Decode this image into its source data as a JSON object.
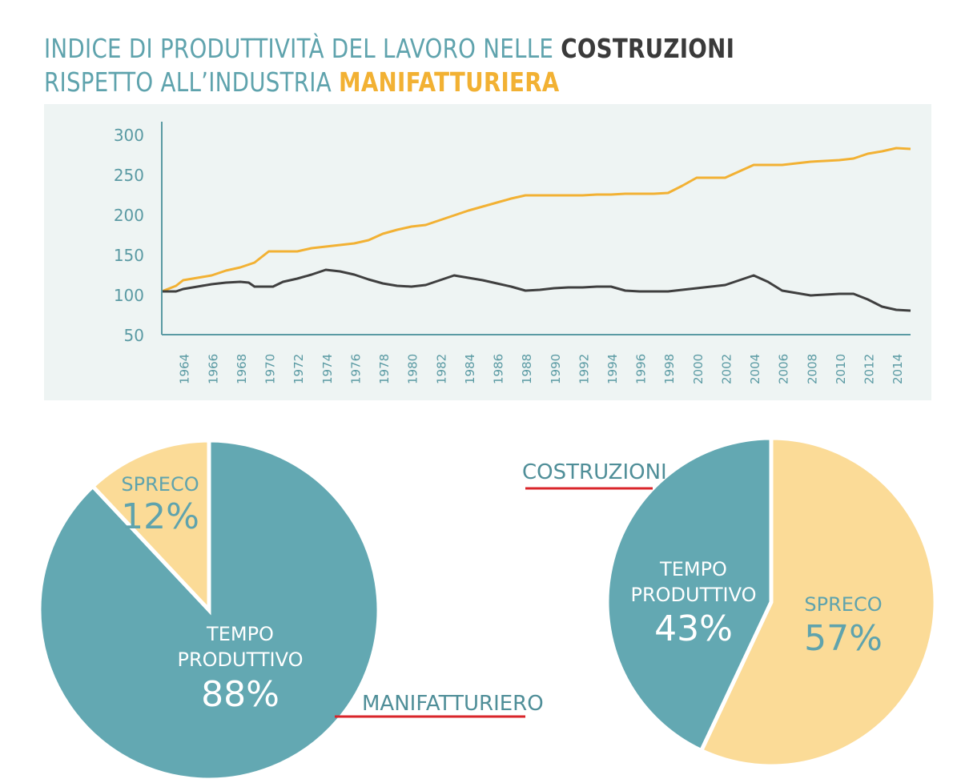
{
  "title": {
    "line1_prefix": "INDICE DI PRODUTTIVITÀ DEL LAVORO NELLE ",
    "line1_highlight": "COSTRUZIONI",
    "line2_prefix": "RISPETTO ALL’INDUSTRIA ",
    "line2_highlight": "MANIFATTURIERA"
  },
  "colors": {
    "manifatturiera": "#f2b133",
    "costruzioni": "#3f3f3f",
    "teal": "#63a8b2",
    "wheat": "#fbdb97",
    "panel": "#eef4f3",
    "axis": "#5a9aa3",
    "pointer": "#d9252a"
  },
  "chart_data": [
    {
      "type": "line",
      "ylim": [
        50,
        300
      ],
      "yticks": [
        "300",
        "250",
        "200",
        "150",
        "100",
        "50"
      ],
      "xlim": [
        1962.5,
        2015
      ],
      "xticks": [
        "1964",
        "1966",
        "1968",
        "1970",
        "1972",
        "1974",
        "1976",
        "1978",
        "1980",
        "1982",
        "1984",
        "1986",
        "1988",
        "1990",
        "1992",
        "1994",
        "1996",
        "1998",
        "2000",
        "2002",
        "2004",
        "2006",
        "2008",
        "2010",
        "2012",
        "2014"
      ],
      "series": [
        {
          "key": "manifatturiera",
          "x": [
            1962.5,
            1963.5,
            1964,
            1965,
            1966,
            1967,
            1968,
            1969,
            1970,
            1971,
            1972,
            1973,
            1974,
            1975,
            1976,
            1977,
            1978,
            1979,
            1980,
            1981,
            1982,
            1983,
            1984,
            1985,
            1986,
            1987,
            1988,
            1989,
            1990,
            1991,
            1992,
            1993,
            1994,
            1995,
            1996,
            1997,
            1998,
            1999,
            2000,
            2001,
            2002,
            2003,
            2004,
            2005,
            2006,
            2007,
            2008,
            2009,
            2010,
            2011,
            2012,
            2013,
            2014,
            2015
          ],
          "values": [
            104,
            111,
            118,
            121,
            124,
            130,
            134,
            140,
            154,
            154,
            154,
            158,
            160,
            162,
            164,
            168,
            176,
            181,
            185,
            187,
            193,
            199,
            205,
            210,
            215,
            220,
            224,
            224,
            224,
            224,
            224,
            225,
            225,
            226,
            226,
            226,
            227,
            236,
            246,
            246,
            246,
            254,
            262,
            262,
            262,
            264,
            266,
            267,
            268,
            270,
            276,
            279,
            283,
            282
          ]
        },
        {
          "key": "costruzioni",
          "x": [
            1962.5,
            1963.5,
            1964,
            1965,
            1966,
            1967,
            1968,
            1968.6,
            1969,
            1970,
            1970.3,
            1971,
            1972,
            1973,
            1974,
            1975,
            1976,
            1977,
            1978,
            1979,
            1980,
            1981,
            1982,
            1983,
            1984,
            1985,
            1986,
            1987,
            1988,
            1989,
            1990,
            1991,
            1992,
            1993,
            1994,
            1995,
            1996,
            1997,
            1998,
            1999,
            2000,
            2001,
            2002,
            2003,
            2004,
            2005,
            2006,
            2007,
            2008,
            2009,
            2010,
            2011,
            2012,
            2013,
            2014,
            2015
          ],
          "values": [
            104,
            104,
            107,
            110,
            113,
            115,
            116,
            115,
            110,
            110,
            110,
            116,
            120,
            125,
            131,
            129,
            125,
            119,
            114,
            111,
            110,
            112,
            118,
            124,
            121,
            118,
            114,
            110,
            105,
            106,
            108,
            109,
            109,
            110,
            110,
            105,
            104,
            104,
            104,
            106,
            108,
            110,
            112,
            118,
            124,
            116,
            105,
            102,
            99,
            100,
            101,
            101,
            94,
            85,
            81,
            80
          ]
        }
      ]
    },
    {
      "type": "pie",
      "name": "MANIFATTURIERO",
      "slices": [
        {
          "label": "TEMPO PRODUTTIVO",
          "value": 88,
          "display": "88%",
          "color": "#63a8b2"
        },
        {
          "label": "SPRECO",
          "value": 12,
          "display": "12%",
          "color": "#fbdb97"
        }
      ]
    },
    {
      "type": "pie",
      "name": "COSTRUZIONI",
      "slices": [
        {
          "label": "SPRECO",
          "value": 57,
          "display": "57%",
          "color": "#fbdb97"
        },
        {
          "label": "TEMPO PRODUTTIVO",
          "value": 43,
          "display": "43%",
          "color": "#63a8b2"
        }
      ]
    }
  ]
}
